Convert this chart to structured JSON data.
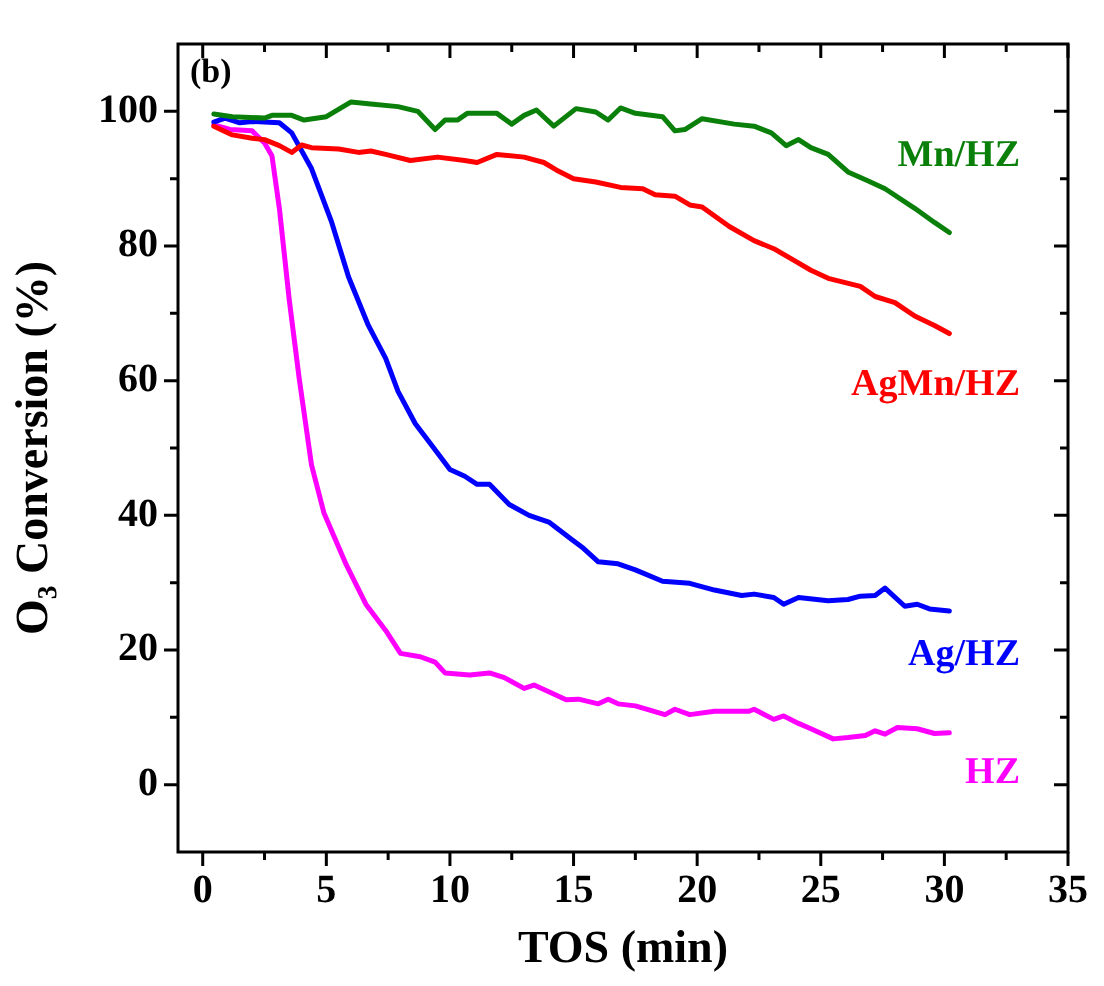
{
  "chart_data": {
    "type": "line",
    "title": "(b)",
    "xlabel": "TOS (min)",
    "ylabel": "O₃ Conversion (%)",
    "xlim": [
      -1,
      35
    ],
    "ylim": [
      -10,
      110
    ],
    "xticks": [
      0,
      {
        "value": 2.5,
        "label": null
      },
      5,
      {
        "value": 7.5,
        "label": null
      },
      10,
      {
        "value": 12.5,
        "label": null
      },
      15,
      {
        "value": 17.5,
        "label": null
      },
      20,
      {
        "value": 22.5,
        "label": null
      },
      25,
      {
        "value": 27.5,
        "label": null
      },
      30,
      {
        "value": 32.5,
        "label": null
      },
      35
    ],
    "yticks": [
      0,
      {
        "value": 10,
        "label": null
      },
      20,
      {
        "value": 30,
        "label": null
      },
      40,
      {
        "value": 50,
        "label": null
      },
      60,
      {
        "value": 70,
        "label": null
      },
      80,
      {
        "value": 90,
        "label": null
      },
      100
    ],
    "marker": "none",
    "line_style": "solid",
    "series": [
      {
        "name": "Mn/HZ",
        "color": "#0a800a",
        "x": [
          0.45,
          1.2,
          2.5,
          2.8,
          3.6,
          4.1,
          5,
          6,
          6.8,
          7.9,
          8.7,
          9.4,
          9.8,
          10.3,
          10.7,
          11.9,
          12.5,
          13,
          13.5,
          14.2,
          15.1,
          15.9,
          16.4,
          16.9,
          17.5,
          18.6,
          19.1,
          19.5,
          20.2,
          21.5,
          22.3,
          23,
          23.6,
          24.1,
          24.6,
          25.3,
          26.1,
          26.9,
          27.6,
          28.8,
          29.6,
          30.2
        ],
        "values": [
          99.6,
          99.2,
          99,
          99.4,
          99.4,
          98.7,
          99.2,
          101.4,
          101.1,
          100.7,
          100,
          97.3,
          98.7,
          98.7,
          99.7,
          99.7,
          98.1,
          99.4,
          100.2,
          97.8,
          100.4,
          99.9,
          98.7,
          100.5,
          99.7,
          99.2,
          97.1,
          97.3,
          98.9,
          98.1,
          97.8,
          96.8,
          94.9,
          95.8,
          94.6,
          93.6,
          91,
          89.7,
          88.5,
          85.6,
          83.5,
          82
        ]
      },
      {
        "name": "AgMn/HZ",
        "color": "#ff0000",
        "x": [
          0.45,
          1.2,
          2,
          2.5,
          3.1,
          3.6,
          4,
          4.4,
          5.5,
          6.3,
          6.8,
          7.4,
          8.4,
          9.5,
          10.6,
          11.1,
          11.9,
          13,
          13.8,
          14.3,
          15,
          15.9,
          16.9,
          17.8,
          18.3,
          19.1,
          19.7,
          20.2,
          21.3,
          22.3,
          23.1,
          23.9,
          24.6,
          25.3,
          26.6,
          27.2,
          28,
          28.8,
          29.6,
          30.2
        ],
        "values": [
          97.8,
          96.5,
          96,
          95.8,
          94.9,
          93.9,
          95,
          94.6,
          94.4,
          93.9,
          94.1,
          93.6,
          92.7,
          93.2,
          92.7,
          92.4,
          93.6,
          93.2,
          92.4,
          91.3,
          90,
          89.5,
          88.7,
          88.5,
          87.6,
          87.4,
          86.1,
          85.8,
          82.9,
          80.8,
          79.6,
          77.9,
          76.4,
          75.2,
          74,
          72.5,
          71.6,
          69.6,
          68.2,
          67
        ]
      },
      {
        "name": "Ag/HZ",
        "color": "#0000ff",
        "x": [
          0.45,
          0.9,
          1.5,
          2,
          3.1,
          3.6,
          4.4,
          5.2,
          5.9,
          6.7,
          7.4,
          7.9,
          8.6,
          9.2,
          10,
          10.6,
          11.1,
          11.6,
          12.4,
          13.2,
          14,
          14.9,
          15.4,
          16,
          16.8,
          17.5,
          18.6,
          19.7,
          20.7,
          21.8,
          22.3,
          23.1,
          23.5,
          24.1,
          25.3,
          26.1,
          26.6,
          27.2,
          27.6,
          28.4,
          28.9,
          29.4,
          30.2
        ],
        "values": [
          98.4,
          99,
          98.3,
          98.5,
          98.3,
          96.8,
          91.5,
          83.7,
          75.4,
          68.2,
          63.3,
          58.4,
          53.6,
          50.7,
          46.8,
          45.8,
          44.6,
          44.6,
          41.6,
          40,
          39,
          36.5,
          35.1,
          33.1,
          32.8,
          31.9,
          30.2,
          29.9,
          28.9,
          28.1,
          28.3,
          27.8,
          26.8,
          27.8,
          27.3,
          27.5,
          28,
          28.1,
          29.2,
          26.5,
          26.8,
          26.1,
          25.8
        ]
      },
      {
        "name": "HZ",
        "color": "#ff00ff",
        "x": [
          0.45,
          1.1,
          2,
          2.5,
          2.8,
          3.1,
          3.5,
          3.9,
          4.4,
          4.9,
          5.8,
          6.6,
          7.4,
          8,
          8.8,
          9.4,
          9.8,
          10.8,
          11.6,
          12.2,
          13,
          13.4,
          14,
          14.7,
          15.2,
          16,
          16.4,
          16.8,
          17.5,
          18.7,
          19.1,
          19.7,
          20.7,
          22.1,
          22.3,
          23.1,
          23.5,
          24.1,
          24.6,
          25.5,
          26.1,
          26.8,
          27.2,
          27.6,
          28.1,
          28.9,
          29.6,
          30.2
        ],
        "values": [
          98,
          97.3,
          97.1,
          95.3,
          93.4,
          85.6,
          72,
          60.4,
          47.5,
          40.4,
          32.7,
          26.8,
          22.9,
          19.5,
          19,
          18.2,
          16.6,
          16.3,
          16.6,
          15.9,
          14.3,
          14.8,
          13.8,
          12.6,
          12.7,
          12,
          12.7,
          12,
          11.7,
          10.4,
          11.2,
          10.4,
          10.9,
          10.9,
          11.2,
          9.7,
          10.2,
          9.1,
          8.3,
          6.8,
          7,
          7.3,
          8,
          7.5,
          8.5,
          8.3,
          7.6,
          7.7
        ]
      }
    ]
  }
}
